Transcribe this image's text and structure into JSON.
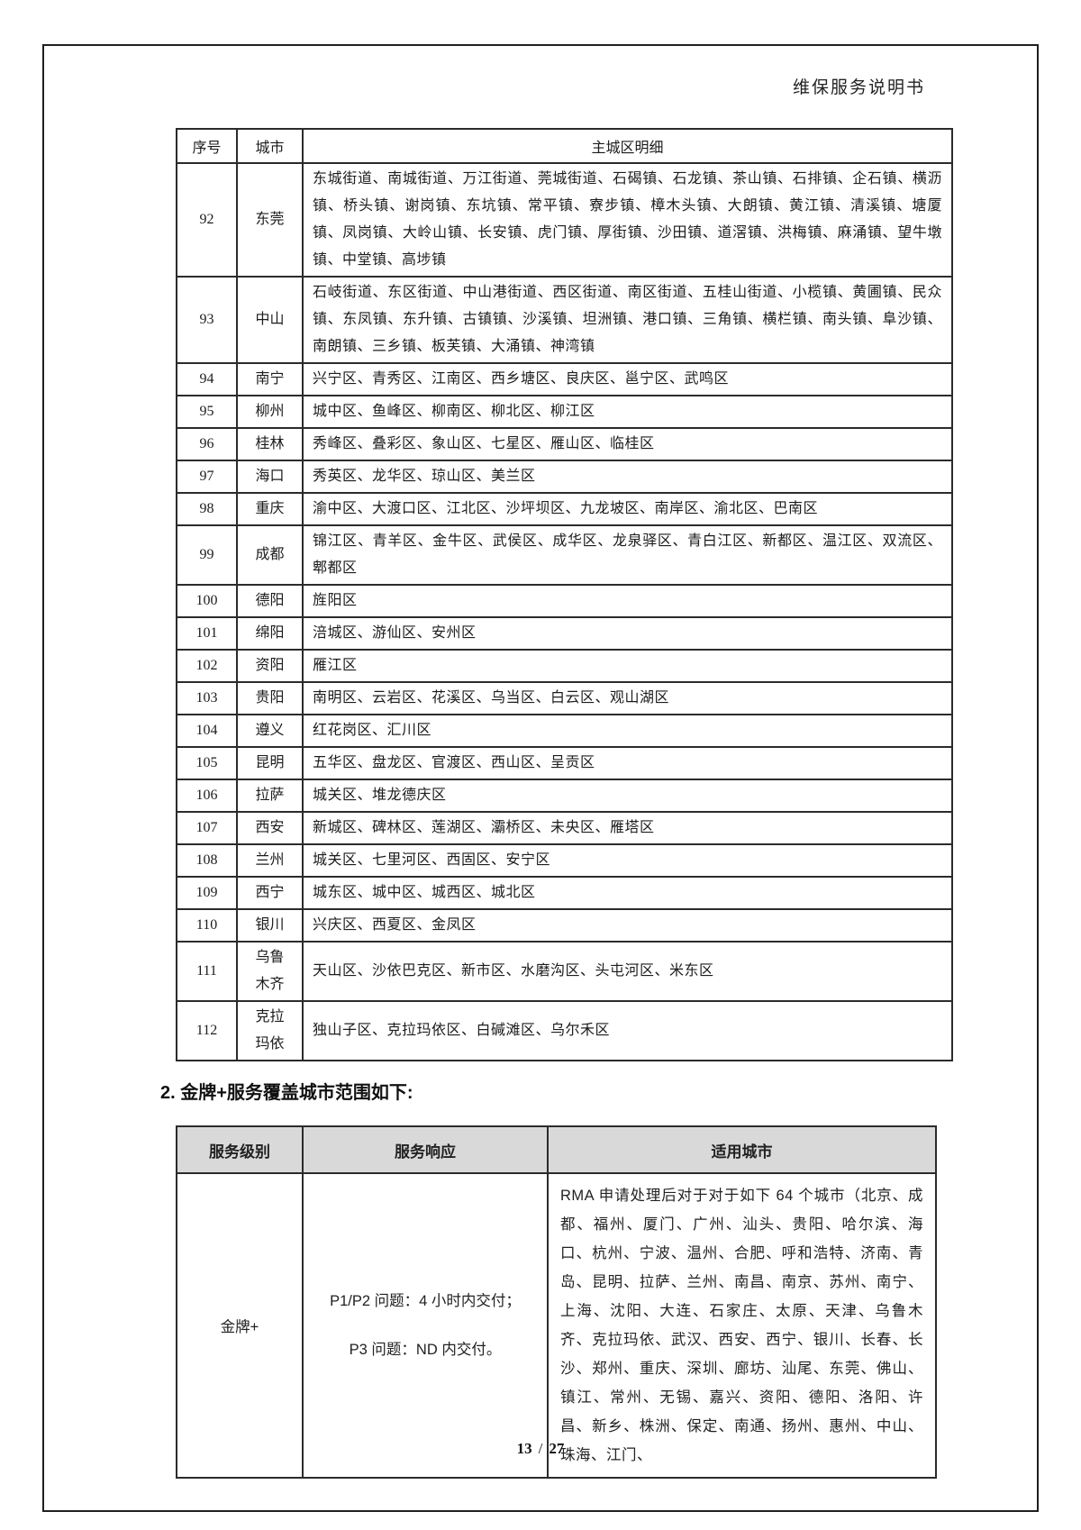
{
  "header": {
    "title": "维保服务说明书"
  },
  "table1": {
    "headers": [
      "序号",
      "城市",
      "主城区明细"
    ],
    "rows": [
      {
        "no": "92",
        "city": "东莞",
        "detail": "东城街道、南城街道、万江街道、莞城街道、石碣镇、石龙镇、茶山镇、石排镇、企石镇、横沥镇、桥头镇、谢岗镇、东坑镇、常平镇、寮步镇、樟木头镇、大朗镇、黄江镇、清溪镇、塘厦镇、凤岗镇、大岭山镇、长安镇、虎门镇、厚街镇、沙田镇、道滘镇、洪梅镇、麻涌镇、望牛墩镇、中堂镇、高埗镇"
      },
      {
        "no": "93",
        "city": "中山",
        "detail": "石岐街道、东区街道、中山港街道、西区街道、南区街道、五桂山街道、小榄镇、黄圃镇、民众镇、东凤镇、东升镇、古镇镇、沙溪镇、坦洲镇、港口镇、三角镇、横栏镇、南头镇、阜沙镇、南朗镇、三乡镇、板芙镇、大涌镇、神湾镇"
      },
      {
        "no": "94",
        "city": "南宁",
        "detail": "兴宁区、青秀区、江南区、西乡塘区、良庆区、邕宁区、武鸣区"
      },
      {
        "no": "95",
        "city": "柳州",
        "detail": "城中区、鱼峰区、柳南区、柳北区、柳江区"
      },
      {
        "no": "96",
        "city": "桂林",
        "detail": "秀峰区、叠彩区、象山区、七星区、雁山区、临桂区"
      },
      {
        "no": "97",
        "city": "海口",
        "detail": "秀英区、龙华区、琼山区、美兰区"
      },
      {
        "no": "98",
        "city": "重庆",
        "detail": "渝中区、大渡口区、江北区、沙坪坝区、九龙坡区、南岸区、渝北区、巴南区"
      },
      {
        "no": "99",
        "city": "成都",
        "detail": "锦江区、青羊区、金牛区、武侯区、成华区、龙泉驿区、青白江区、新都区、温江区、双流区、郫都区"
      },
      {
        "no": "100",
        "city": "德阳",
        "detail": "旌阳区"
      },
      {
        "no": "101",
        "city": "绵阳",
        "detail": "涪城区、游仙区、安州区"
      },
      {
        "no": "102",
        "city": "资阳",
        "detail": "雁江区"
      },
      {
        "no": "103",
        "city": "贵阳",
        "detail": "南明区、云岩区、花溪区、乌当区、白云区、观山湖区"
      },
      {
        "no": "104",
        "city": "遵义",
        "detail": "红花岗区、汇川区"
      },
      {
        "no": "105",
        "city": "昆明",
        "detail": "五华区、盘龙区、官渡区、西山区、呈贡区"
      },
      {
        "no": "106",
        "city": "拉萨",
        "detail": "城关区、堆龙德庆区"
      },
      {
        "no": "107",
        "city": "西安",
        "detail": "新城区、碑林区、莲湖区、灞桥区、未央区、雁塔区"
      },
      {
        "no": "108",
        "city": "兰州",
        "detail": "城关区、七里河区、西固区、安宁区"
      },
      {
        "no": "109",
        "city": "西宁",
        "detail": "城东区、城中区、城西区、城北区"
      },
      {
        "no": "110",
        "city": "银川",
        "detail": "兴庆区、西夏区、金凤区"
      },
      {
        "no": "111",
        "city": "乌鲁\n木齐",
        "detail": "天山区、沙依巴克区、新市区、水磨沟区、头屯河区、米东区"
      },
      {
        "no": "112",
        "city": "克拉\n玛依",
        "detail": "独山子区、克拉玛依区、白碱滩区、乌尔禾区"
      }
    ]
  },
  "section_heading": "2. 金牌+服务覆盖城市范围如下:",
  "table2": {
    "headers": [
      "服务级别",
      "服务响应",
      "适用城市"
    ],
    "row": {
      "level": "金牌+",
      "response_lines": [
        "P1/P2 问题：4 小时内交付；",
        "P3 问题：ND 内交付。"
      ],
      "cities": "RMA 申请处理后对于对于如下 64 个城市（北京、成都、福州、厦门、广州、汕头、贵阳、哈尔滨、海口、杭州、宁波、温州、合肥、呼和浩特、济南、青岛、昆明、拉萨、兰州、南昌、南京、苏州、南宁、上海、沈阳、大连、石家庄、太原、天津、乌鲁木齐、克拉玛依、武汉、西安、西宁、银川、长春、长沙、郑州、重庆、深圳、廊坊、汕尾、东莞、佛山、镇江、常州、无锡、嘉兴、资阳、德阳、洛阳、许昌、新乡、株洲、保定、南通、扬州、惠州、中山、珠海、江门、"
    }
  },
  "footer": {
    "page": "13",
    "sep": "/",
    "total": "27"
  },
  "colors": {
    "table_header_bg": "#d9d9d9",
    "border": "#2b2b2b"
  }
}
